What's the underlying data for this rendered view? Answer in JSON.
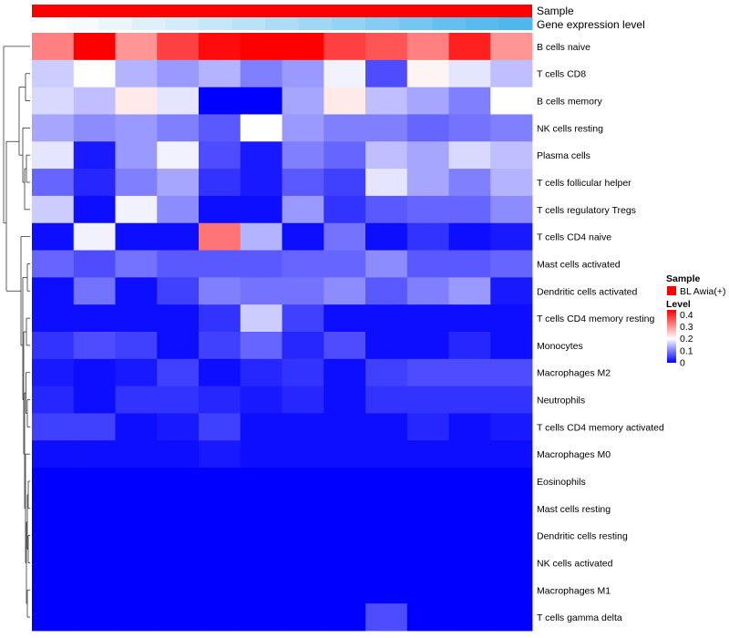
{
  "chart_data": {
    "type": "heatmap",
    "title": "",
    "annotations": {
      "sample_label": "Sample",
      "sample_color": "#FF0000",
      "expression_label": "Gene expression level",
      "expression_colors": [
        "#FFFFFF",
        "#F5FBFE",
        "#EAF6FC",
        "#DEF1FA",
        "#D2ECF9",
        "#C6E7F8",
        "#B9E2F7",
        "#ACDCF6",
        "#9FD7F5",
        "#92D2F4",
        "#84CCF3",
        "#75C6F1",
        "#66C0EF",
        "#58BAEE",
        "#4FB7EC"
      ]
    },
    "rows": [
      "B cells naive",
      "T cells CD8",
      "B cells memory",
      "NK cells resting",
      "Plasma cells",
      "T cells follicular helper",
      "T cells regulatory  Tregs",
      "T cells CD4 naive",
      "Mast cells activated",
      "Dendritic cells activated",
      "T cells CD4 memory resting",
      "Monocytes",
      "Macrophages M2",
      "Neutrophils",
      "T cells CD4 memory activated",
      "Macrophages M0",
      "Eosinophils",
      "Mast cells resting",
      "Dendritic cells resting",
      "NK cells activated",
      "Macrophages M1",
      "T cells gamma delta"
    ],
    "n_columns": 12,
    "values": [
      [
        0.32,
        0.44,
        0.3,
        0.38,
        0.43,
        0.44,
        0.44,
        0.38,
        0.36,
        0.32,
        0.41,
        0.3
      ],
      [
        0.16,
        0.2,
        0.14,
        0.12,
        0.14,
        0.1,
        0.12,
        0.19,
        0.06,
        0.21,
        0.18,
        0.15
      ],
      [
        0.17,
        0.15,
        0.22,
        0.18,
        0.0,
        0.0,
        0.13,
        0.22,
        0.15,
        0.13,
        0.1,
        0.2
      ],
      [
        0.13,
        0.11,
        0.12,
        0.1,
        0.07,
        0.2,
        0.12,
        0.1,
        0.1,
        0.08,
        0.09,
        0.1
      ],
      [
        0.18,
        0.02,
        0.12,
        0.19,
        0.06,
        0.02,
        0.1,
        0.08,
        0.15,
        0.13,
        0.17,
        0.15
      ],
      [
        0.08,
        0.03,
        0.1,
        0.13,
        0.04,
        0.02,
        0.07,
        0.05,
        0.18,
        0.13,
        0.1,
        0.14
      ],
      [
        0.16,
        0.01,
        0.19,
        0.11,
        0.01,
        0.01,
        0.12,
        0.04,
        0.07,
        0.08,
        0.08,
        0.11
      ],
      [
        0.01,
        0.19,
        0.01,
        0.01,
        0.33,
        0.14,
        0.01,
        0.09,
        0.01,
        0.04,
        0.01,
        0.02
      ],
      [
        0.08,
        0.06,
        0.09,
        0.07,
        0.07,
        0.07,
        0.08,
        0.08,
        0.11,
        0.07,
        0.07,
        0.08
      ],
      [
        0.01,
        0.09,
        0.01,
        0.05,
        0.1,
        0.09,
        0.09,
        0.11,
        0.07,
        0.1,
        0.12,
        0.02
      ],
      [
        0.01,
        0.01,
        0.01,
        0.01,
        0.04,
        0.16,
        0.05,
        0.01,
        0.01,
        0.01,
        0.01,
        0.01
      ],
      [
        0.04,
        0.06,
        0.05,
        0.01,
        0.05,
        0.08,
        0.03,
        0.06,
        0.01,
        0.01,
        0.03,
        0.01
      ],
      [
        0.02,
        0.01,
        0.02,
        0.05,
        0.01,
        0.03,
        0.04,
        0.01,
        0.05,
        0.06,
        0.06,
        0.06
      ],
      [
        0.03,
        0.01,
        0.04,
        0.04,
        0.03,
        0.02,
        0.03,
        0.01,
        0.04,
        0.04,
        0.04,
        0.04
      ],
      [
        0.05,
        0.05,
        0.01,
        0.02,
        0.05,
        0.01,
        0.01,
        0.01,
        0.01,
        0.03,
        0.01,
        0.02
      ],
      [
        0.01,
        0.01,
        0.01,
        0.01,
        0.02,
        0.01,
        0.01,
        0.01,
        0.01,
        0.01,
        0.01,
        0.01
      ],
      [
        0.0,
        0.0,
        0.0,
        0.0,
        0.0,
        0.0,
        0.0,
        0.0,
        0.0,
        0.0,
        0.0,
        0.0
      ],
      [
        0.0,
        0.0,
        0.0,
        0.0,
        0.0,
        0.0,
        0.0,
        0.0,
        0.0,
        0.0,
        0.0,
        0.0
      ],
      [
        0.0,
        0.0,
        0.0,
        0.0,
        0.0,
        0.0,
        0.0,
        0.0,
        0.0,
        0.0,
        0.0,
        0.0
      ],
      [
        0.0,
        0.0,
        0.0,
        0.0,
        0.0,
        0.0,
        0.0,
        0.0,
        0.0,
        0.0,
        0.0,
        0.0
      ],
      [
        0.0,
        0.0,
        0.0,
        0.0,
        0.0,
        0.0,
        0.0,
        0.0,
        0.0,
        0.0,
        0.0,
        0.0
      ],
      [
        0.0,
        0.0,
        0.0,
        0.0,
        0.0,
        0.0,
        0.0,
        0.0,
        0.06,
        0.0,
        0.0,
        0.0
      ]
    ],
    "color_scale": {
      "min": 0,
      "mid": 0.2,
      "max": 0.44,
      "low_color": "#0000FF",
      "mid_color": "#FFFFFF",
      "high_color": "#FF0000"
    },
    "legend": {
      "sample_title": "Sample",
      "sample_entry": "BL Awia(+)",
      "level_title": "Level",
      "level_ticks": [
        0.4,
        0.3,
        0.2,
        0.1,
        0
      ]
    },
    "dendrogram": "rows"
  }
}
